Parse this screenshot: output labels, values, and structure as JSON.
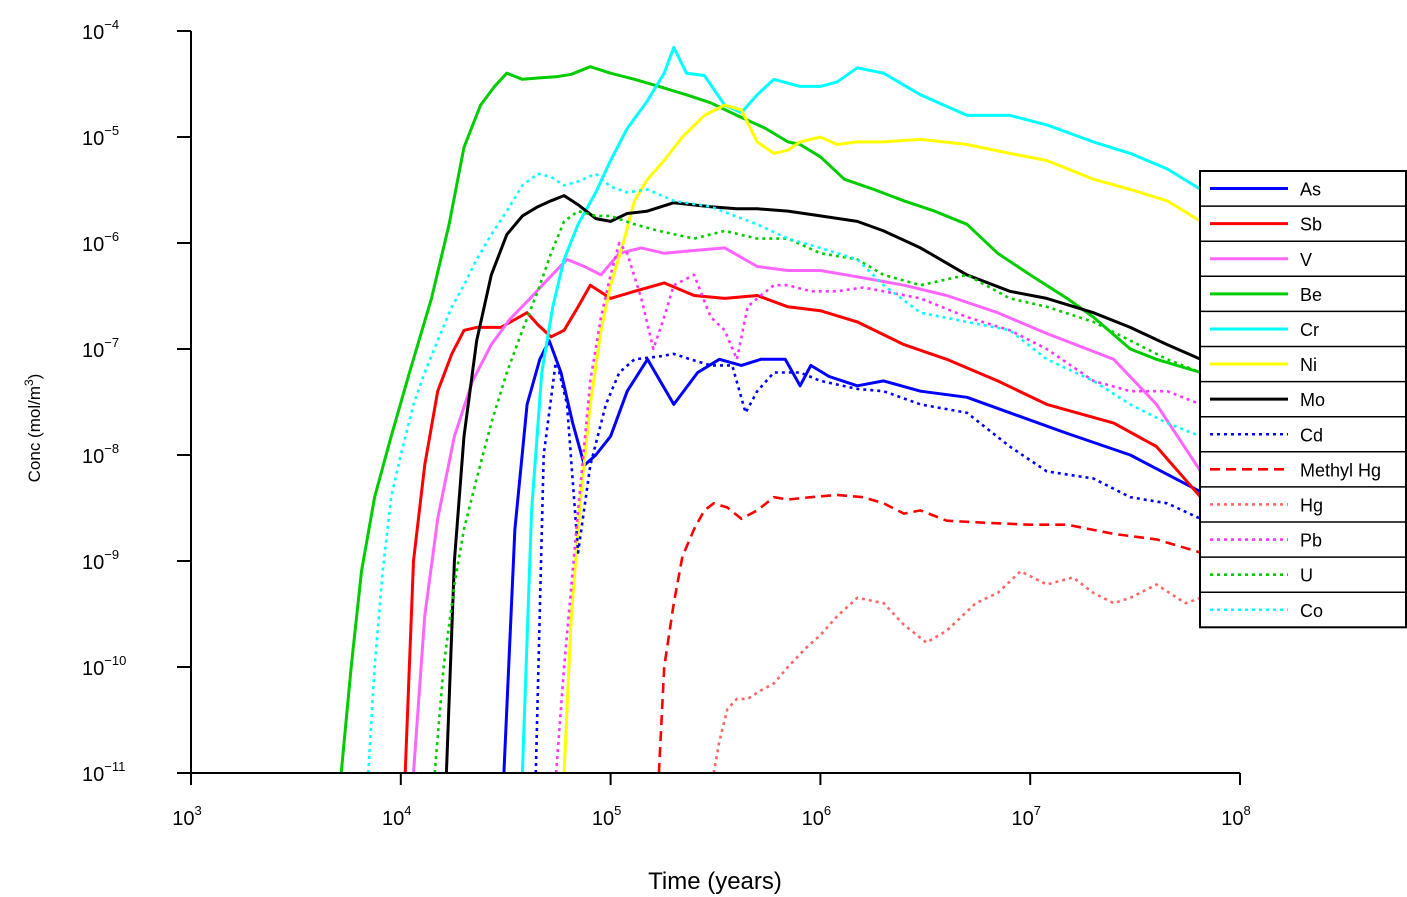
{
  "chart_data": {
    "type": "line",
    "title": "",
    "xlabel": "Time (years)",
    "ylabel": {
      "main": "Conc (mol/m",
      "sup": "3",
      "tail": ")"
    },
    "x_scale": "log",
    "y_scale": "log",
    "xlim": [
      1000,
      100000000
    ],
    "ylim": [
      1e-11,
      0.0001
    ],
    "x_ticks": [
      {
        "base": "10",
        "exp": "3"
      },
      {
        "base": "10",
        "exp": "4"
      },
      {
        "base": "10",
        "exp": "5"
      },
      {
        "base": "10",
        "exp": "6"
      },
      {
        "base": "10",
        "exp": "7"
      },
      {
        "base": "10",
        "exp": "8"
      }
    ],
    "y_ticks": [
      {
        "base": "10",
        "exp": "−4"
      },
      {
        "base": "10",
        "exp": "−5"
      },
      {
        "base": "10",
        "exp": "−6"
      },
      {
        "base": "10",
        "exp": "−7"
      },
      {
        "base": "10",
        "exp": "−8"
      },
      {
        "base": "10",
        "exp": "−9"
      },
      {
        "base": "10",
        "exp": "−10"
      },
      {
        "base": "10",
        "exp": "−11"
      }
    ],
    "grid": false,
    "legend_position": "right",
    "series": [
      {
        "name": "As",
        "color": "#0000ff",
        "style": "solid",
        "x": [
          31000,
          35000,
          40000,
          46000,
          51000,
          58000,
          66000,
          75000,
          85000,
          100000,
          120000,
          150000,
          200000,
          260000,
          330000,
          420000,
          520000,
          680000,
          800000,
          900000,
          1100000,
          1500000,
          2000000,
          3000000,
          5000000,
          8000000,
          15000000,
          30000000,
          65000000
        ],
        "y": [
          1e-11,
          2e-09,
          3e-08,
          8e-08,
          1.2e-07,
          6e-08,
          2e-08,
          8e-09,
          1e-08,
          1.5e-08,
          4e-08,
          8e-08,
          3e-08,
          6e-08,
          8e-08,
          7e-08,
          8e-08,
          8e-08,
          4.5e-08,
          7e-08,
          5.5e-08,
          4.5e-08,
          5e-08,
          4e-08,
          3.5e-08,
          2.5e-08,
          1.6e-08,
          1e-08,
          4.5e-09
        ]
      },
      {
        "name": "Sb",
        "color": "#ff0000",
        "style": "solid",
        "x": [
          10500,
          11500,
          13000,
          15000,
          17500,
          20000,
          23000,
          26000,
          30000,
          35000,
          40000,
          45000,
          52000,
          60000,
          70000,
          80000,
          100000,
          130000,
          180000,
          250000,
          350000,
          500000,
          700000,
          1000000,
          1500000,
          2500000,
          4000000,
          7000000,
          12000000,
          25000000,
          40000000,
          65000000
        ],
        "y": [
          1e-11,
          1e-09,
          8e-09,
          4e-08,
          9e-08,
          1.5e-07,
          1.6e-07,
          1.6e-07,
          1.6e-07,
          1.9e-07,
          2.2e-07,
          1.7e-07,
          1.3e-07,
          1.5e-07,
          2.5e-07,
          4e-07,
          3e-07,
          3.5e-07,
          4.2e-07,
          3.2e-07,
          3e-07,
          3.2e-07,
          2.5e-07,
          2.3e-07,
          1.8e-07,
          1.1e-07,
          8e-08,
          5e-08,
          3e-08,
          2e-08,
          1.2e-08,
          4e-09
        ]
      },
      {
        "name": "V",
        "color": "#ff66ff",
        "style": "solid",
        "x": [
          11500,
          13000,
          15000,
          18000,
          22000,
          27000,
          33000,
          40000,
          50000,
          62000,
          75000,
          90000,
          110000,
          140000,
          180000,
          250000,
          350000,
          500000,
          700000,
          1000000,
          1500000,
          2500000,
          4000000,
          7000000,
          12000000,
          25000000,
          40000000,
          65000000
        ],
        "y": [
          1e-11,
          3e-10,
          2.5e-09,
          1.5e-08,
          5e-08,
          1.1e-07,
          1.9e-07,
          2.8e-07,
          4.5e-07,
          7e-07,
          6e-07,
          5e-07,
          8e-07,
          9e-07,
          8e-07,
          8.5e-07,
          9e-07,
          6e-07,
          5.5e-07,
          5.5e-07,
          4.8e-07,
          4e-07,
          3.2e-07,
          2.2e-07,
          1.4e-07,
          8e-08,
          3e-08,
          7e-09
        ]
      },
      {
        "name": "Be",
        "color": "#00cc00",
        "style": "solid",
        "x": [
          5200,
          5800,
          6500,
          7500,
          9000,
          11000,
          14000,
          17000,
          20000,
          24000,
          28000,
          32000,
          38000,
          45000,
          55000,
          65000,
          80000,
          100000,
          130000,
          170000,
          230000,
          300000,
          400000,
          550000,
          700000,
          800000,
          1000000,
          1300000,
          1800000,
          2500000,
          3500000,
          5000000,
          7000000,
          10000000,
          15000000,
          20000000,
          30000000,
          40000000,
          65000000
        ],
        "y": [
          1e-11,
          1e-10,
          8e-10,
          4e-09,
          1.5e-08,
          6e-08,
          3e-07,
          1.5e-06,
          8e-06,
          2e-05,
          3e-05,
          4e-05,
          3.5e-05,
          3.6e-05,
          3.7e-05,
          3.9e-05,
          4.6e-05,
          4e-05,
          3.5e-05,
          3e-05,
          2.5e-05,
          2.1e-05,
          1.6e-05,
          1.2e-05,
          9e-06,
          8.5e-06,
          6.5e-06,
          4e-06,
          3.2e-06,
          2.5e-06,
          2e-06,
          1.5e-06,
          8e-07,
          5e-07,
          3e-07,
          2e-07,
          1e-07,
          8e-08,
          6e-08
        ]
      },
      {
        "name": "Cr",
        "color": "#00ffff",
        "style": "solid",
        "x": [
          38000,
          42000,
          47000,
          53000,
          60000,
          70000,
          85000,
          100000,
          120000,
          150000,
          180000,
          200000,
          230000,
          280000,
          350000,
          420000,
          500000,
          600000,
          800000,
          1000000,
          1200000,
          1500000,
          2000000,
          3000000,
          5000000,
          8000000,
          12000000,
          20000000,
          30000000,
          45000000,
          65000000
        ],
        "y": [
          1e-11,
          3e-09,
          6e-08,
          2.5e-07,
          7e-07,
          1.5e-06,
          3e-06,
          6e-06,
          1.2e-05,
          2.2e-05,
          4e-05,
          7e-05,
          4e-05,
          3.8e-05,
          2e-05,
          1.7e-05,
          2.5e-05,
          3.5e-05,
          3e-05,
          3e-05,
          3.3e-05,
          4.5e-05,
          4e-05,
          2.5e-05,
          1.6e-05,
          1.6e-05,
          1.3e-05,
          9e-06,
          7e-06,
          5e-06,
          3.2e-06
        ]
      },
      {
        "name": "Ni",
        "color": "#ffff00",
        "style": "solid",
        "x": [
          60000,
          65000,
          72000,
          80000,
          90000,
          100000,
          115000,
          130000,
          150000,
          180000,
          220000,
          280000,
          350000,
          420000,
          500000,
          600000,
          700000,
          800000,
          1000000,
          1200000,
          1500000,
          2000000,
          3000000,
          5000000,
          8000000,
          12000000,
          20000000,
          30000000,
          45000000,
          65000000
        ],
        "y": [
          1e-11,
          3e-10,
          4e-09,
          3e-08,
          1.5e-07,
          4e-07,
          1e-06,
          2.5e-06,
          4e-06,
          6e-06,
          1e-05,
          1.6e-05,
          2e-05,
          1.8e-05,
          9e-06,
          7e-06,
          7.5e-06,
          9e-06,
          1e-05,
          8.5e-06,
          9e-06,
          9e-06,
          9.5e-06,
          8.5e-06,
          7e-06,
          6e-06,
          4e-06,
          3.2e-06,
          2.5e-06,
          1.6e-06
        ]
      },
      {
        "name": "Mo",
        "color": "#000000",
        "style": "solid",
        "x": [
          16500,
          18000,
          20000,
          23000,
          27000,
          32000,
          38000,
          45000,
          52000,
          60000,
          70000,
          85000,
          100000,
          120000,
          150000,
          200000,
          300000,
          400000,
          500000,
          700000,
          1000000,
          1500000,
          2000000,
          3000000,
          5000000,
          8000000,
          12000000,
          20000000,
          30000000,
          45000000,
          65000000
        ],
        "y": [
          1e-11,
          1e-09,
          1.5e-08,
          1.2e-07,
          5e-07,
          1.2e-06,
          1.8e-06,
          2.2e-06,
          2.5e-06,
          2.8e-06,
          2.3e-06,
          1.7e-06,
          1.6e-06,
          1.9e-06,
          2e-06,
          2.4e-06,
          2.2e-06,
          2.1e-06,
          2.1e-06,
          2e-06,
          1.8e-06,
          1.6e-06,
          1.3e-06,
          9e-07,
          5e-07,
          3.5e-07,
          3e-07,
          2.2e-07,
          1.6e-07,
          1.1e-07,
          8e-08
        ]
      },
      {
        "name": "Cd",
        "color": "#0000ff",
        "style": "dotted",
        "x": [
          44000,
          48000,
          55000,
          62000,
          70000,
          80000,
          95000,
          110000,
          130000,
          170000,
          200000,
          240000,
          300000,
          380000,
          440000,
          500000,
          600000,
          800000,
          1000000,
          1500000,
          2000000,
          3000000,
          5000000,
          8000000,
          12000000,
          20000000,
          30000000,
          45000000,
          65000000
        ],
        "y": [
          1e-11,
          1e-08,
          8e-08,
          3e-08,
          1.2e-09,
          8e-09,
          3e-08,
          6e-08,
          8e-08,
          8.5e-08,
          9e-08,
          8e-08,
          7e-08,
          7e-08,
          2.5e-08,
          4e-08,
          6e-08,
          6e-08,
          5e-08,
          4.2e-08,
          4e-08,
          3e-08,
          2.5e-08,
          1.2e-08,
          7e-09,
          6e-09,
          4e-09,
          3.5e-09,
          2.5e-09
        ]
      },
      {
        "name": "Methyl Hg",
        "color": "#ff0000",
        "style": "dashed",
        "x": [
          170000,
          180000,
          200000,
          220000,
          250000,
          280000,
          310000,
          360000,
          420000,
          500000,
          600000,
          700000,
          900000,
          1200000,
          1600000,
          2000000,
          2500000,
          3000000,
          4000000,
          6000000,
          10000000,
          15000000,
          25000000,
          40000000,
          65000000
        ],
        "y": [
          1e-11,
          1e-10,
          4e-10,
          1.1e-09,
          2e-09,
          3e-09,
          3.5e-09,
          3.2e-09,
          2.5e-09,
          3e-09,
          4e-09,
          3.8e-09,
          4e-09,
          4.2e-09,
          4e-09,
          3.5e-09,
          2.8e-09,
          3e-09,
          2.4e-09,
          2.3e-09,
          2.2e-09,
          2.2e-09,
          1.8e-09,
          1.6e-09,
          1.2e-09
        ]
      },
      {
        "name": "Hg",
        "color": "#ff6666",
        "style": "dotted",
        "x": [
          310000,
          330000,
          360000,
          400000,
          450000,
          520000,
          600000,
          700000,
          850000,
          1000000,
          1200000,
          1500000,
          2000000,
          2500000,
          3200000,
          4000000,
          5500000,
          7000000,
          9000000,
          12000000,
          16000000,
          20000000,
          25000000,
          30000000,
          40000000,
          55000000,
          65000000
        ],
        "y": [
          1e-11,
          2e-11,
          4e-11,
          5e-11,
          5e-11,
          6e-11,
          7e-11,
          1e-10,
          1.5e-10,
          2e-10,
          3e-10,
          4.5e-10,
          4e-10,
          2.5e-10,
          1.7e-10,
          2.2e-10,
          4e-10,
          5e-10,
          8e-10,
          6e-10,
          7e-10,
          5e-10,
          4e-10,
          4.5e-10,
          6e-10,
          4e-10,
          4.5e-10
        ]
      },
      {
        "name": "Pb",
        "color": "#ff33ff",
        "style": "dotted",
        "x": [
          55000,
          60000,
          70000,
          80000,
          90000,
          100000,
          110000,
          120000,
          140000,
          160000,
          180000,
          200000,
          250000,
          300000,
          350000,
          400000,
          450000,
          500000,
          600000,
          700000,
          900000,
          1200000,
          1600000,
          2000000,
          3000000,
          5000000,
          8000000,
          12000000,
          20000000,
          30000000,
          45000000,
          65000000
        ],
        "y": [
          1e-11,
          1e-10,
          3e-09,
          5e-08,
          2e-07,
          5e-07,
          1e-06,
          8e-07,
          3e-07,
          1e-07,
          2e-07,
          4e-07,
          5e-07,
          2e-07,
          1.5e-07,
          8e-08,
          2.5e-07,
          3e-07,
          4e-07,
          4e-07,
          3.5e-07,
          3.5e-07,
          3.8e-07,
          3.5e-07,
          3e-07,
          2e-07,
          1.5e-07,
          1e-07,
          5e-08,
          4e-08,
          4e-08,
          3e-08
        ]
      },
      {
        "name": "U",
        "color": "#00cc00",
        "style": "dotted",
        "x": [
          14500,
          16000,
          18000,
          20000,
          23000,
          27000,
          32000,
          38000,
          45000,
          52000,
          60000,
          70000,
          85000,
          100000,
          130000,
          170000,
          250000,
          350000,
          500000,
          700000,
          1000000,
          1500000,
          2000000,
          3000000,
          5000000,
          8000000,
          12000000,
          20000000,
          30000000,
          45000000,
          65000000
        ],
        "y": [
          1e-11,
          1e-10,
          6e-10,
          2e-09,
          6e-09,
          2e-08,
          6e-08,
          1.5e-07,
          3.5e-07,
          8e-07,
          1.6e-06,
          2e-06,
          1.8e-06,
          1.8e-06,
          1.5e-06,
          1.3e-06,
          1.1e-06,
          1.3e-06,
          1.1e-06,
          1.1e-06,
          8e-07,
          7e-07,
          5e-07,
          4e-07,
          5e-07,
          3e-07,
          2.5e-07,
          1.8e-07,
          1.2e-07,
          8e-08,
          6e-08
        ]
      },
      {
        "name": "Co",
        "color": "#00ffff",
        "style": "dotted",
        "x": [
          7000,
          7500,
          8200,
          9000,
          10000,
          11500,
          13000,
          15000,
          17500,
          20000,
          23000,
          27000,
          32000,
          38000,
          45000,
          52000,
          60000,
          70000,
          85000,
          100000,
          120000,
          150000,
          200000,
          300000,
          500000,
          700000,
          1000000,
          1500000,
          2000000,
          3000000,
          5000000,
          8000000,
          12000000,
          20000000,
          30000000,
          45000000,
          65000000
        ],
        "y": [
          1e-11,
          1e-10,
          8e-10,
          4e-09,
          1e-08,
          3e-08,
          6e-08,
          1.2e-07,
          2.5e-07,
          4e-07,
          7e-07,
          1.2e-06,
          2e-06,
          3.5e-06,
          4.5e-06,
          4.2e-06,
          3.5e-06,
          3.8e-06,
          4.5e-06,
          3.4e-06,
          3e-06,
          3.2e-06,
          2.5e-06,
          2.2e-06,
          1.5e-06,
          1.1e-06,
          9e-07,
          7e-07,
          4e-07,
          2.2e-07,
          1.8e-07,
          1.5e-07,
          8e-08,
          5e-08,
          3e-08,
          2e-08,
          1.5e-08
        ]
      }
    ]
  }
}
